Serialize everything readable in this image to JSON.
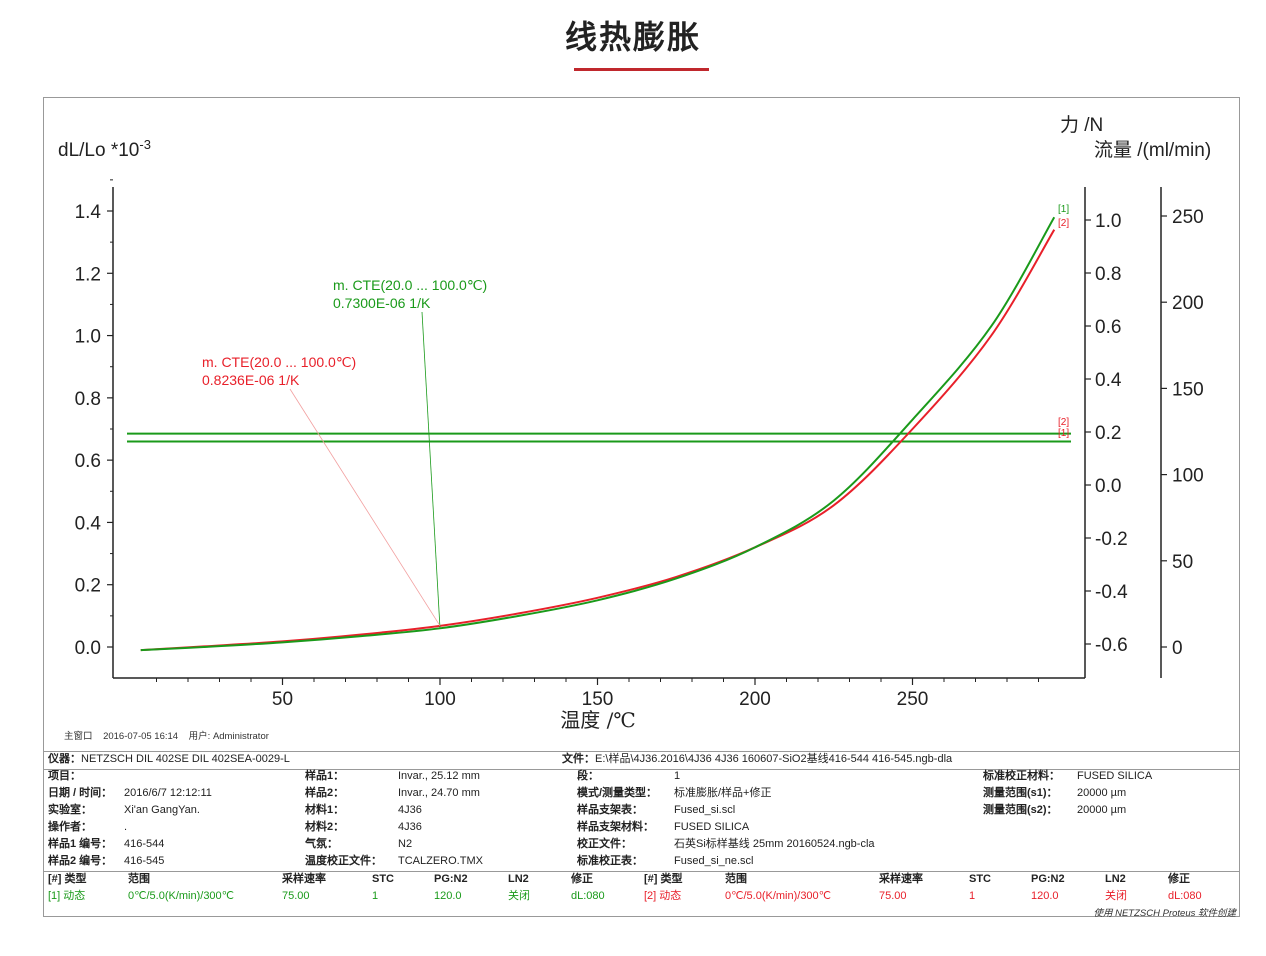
{
  "page": {
    "title": "线热膨胀"
  },
  "chart_data": {
    "type": "line",
    "title": "",
    "xlabel": "温度 /℃",
    "ylabel": "dL/Lo *10-3",
    "ylabel_base": "dL/Lo *10",
    "ylabel_exp": "-3",
    "y2label": "力 /N",
    "y3label": "流量 /(ml/min)",
    "xlim": [
      0,
      300
    ],
    "ylim": [
      -0.1,
      1.5
    ],
    "x_ticks": [
      50,
      100,
      150,
      200,
      250
    ],
    "y_ticks": [
      0.0,
      0.2,
      0.4,
      0.6,
      0.8,
      1.0,
      1.2,
      1.4
    ],
    "y_tick_labels": [
      "0.0",
      "0.2",
      "0.4",
      "0.6",
      "0.8",
      "1.0",
      "1.2",
      "1.4"
    ],
    "y2_ticks": [
      -0.6,
      -0.4,
      -0.2,
      0.0,
      0.2,
      0.4,
      0.6,
      0.8,
      1.0
    ],
    "y2_tick_labels": [
      "-0.6",
      "-0.4",
      "-0.2",
      "0.0",
      "0.2",
      "0.4",
      "0.6",
      "0.8",
      "1.0"
    ],
    "y3_ticks": [
      0,
      50,
      100,
      150,
      200,
      250
    ],
    "y3_tick_labels": [
      "0",
      "50",
      "100",
      "150",
      "200",
      "250"
    ],
    "series": [
      {
        "name": "[1]",
        "color": "#1a9a1a",
        "x": [
          5,
          25,
          50,
          75,
          100,
          125,
          150,
          175,
          200,
          225,
          250,
          275,
          295
        ],
        "y": [
          -0.01,
          0.0,
          0.015,
          0.035,
          0.06,
          0.1,
          0.15,
          0.22,
          0.32,
          0.47,
          0.73,
          1.03,
          1.38
        ]
      },
      {
        "name": "[2]",
        "color": "#e8202a",
        "x": [
          5,
          25,
          50,
          75,
          100,
          125,
          150,
          175,
          200,
          225,
          250,
          275,
          295
        ],
        "y": [
          -0.01,
          0.002,
          0.018,
          0.04,
          0.068,
          0.108,
          0.158,
          0.225,
          0.32,
          0.455,
          0.7,
          1.0,
          1.34
        ]
      }
    ],
    "force_lines": [
      {
        "name": "[1]",
        "color": "#1a9a1a",
        "y": 0.66
      },
      {
        "name": "[2]",
        "color": "#1a9a1a",
        "y": 0.685
      }
    ],
    "end_markers": [
      {
        "text": "[1]",
        "color": "#1a9a1a"
      },
      {
        "text": "[2]",
        "color": "#e8202a"
      },
      {
        "text": "[2]",
        "color": "#e8202a"
      },
      {
        "text": "[1]",
        "color": "#e8202a"
      }
    ],
    "annotations": [
      {
        "color": "#1a9a1a",
        "line1": "m. CTE(20.0 ... 100.0℃)",
        "line2": "0.7300E-06 1/K",
        "anchor_x": 100,
        "anchor_y": 0.06
      },
      {
        "color": "#e8202a",
        "line1": "m. CTE(20.0 ... 100.0℃)",
        "line2": "0.8236E-06 1/K",
        "anchor_x": 100,
        "anchor_y": 0.068
      }
    ]
  },
  "meta": {
    "main_window": "主窗口",
    "datetime": "2016-07-05 16:14",
    "user_label": "用户:",
    "user": "Administrator"
  },
  "info": {
    "instrument_label": "仪器：",
    "instrument": "NETZSCH DIL 402SE DIL 402SEA-0029-L",
    "file_label": "文件：",
    "file": "E:\\样品\\4J36.2016\\4J36 4J36 160607-SiO2基线416-544 416-545.ngb-dla",
    "rows": [
      [
        "项目：",
        "",
        "样品1：",
        "Invar., 25.12 mm",
        "段：",
        "1",
        "标准校正材料：",
        "FUSED SILICA"
      ],
      [
        "日期 / 时间：",
        "2016/6/7 12:12:11",
        "样品2：",
        "Invar., 24.70 mm",
        "模式/测量类型：",
        "标准膨胀/样品+修正",
        "测量范围(s1)：",
        "20000 µm"
      ],
      [
        "实验室：",
        "Xi'an GangYan.",
        "材料1：",
        "4J36",
        "样品支架表：",
        "Fused_si.scl",
        "测量范围(s2)：",
        "20000 µm"
      ],
      [
        "操作者：",
        ".",
        "材料2：",
        "4J36",
        "样品支架材料：",
        "FUSED SILICA",
        "",
        ""
      ],
      [
        "样品1 编号：",
        "416-544",
        "气氛：",
        "N2",
        "校正文件：",
        "石英Si标样基线 25mm 20160524.ngb-cla",
        "",
        ""
      ],
      [
        "样品2 编号：",
        "416-545",
        "温度校正文件：",
        "TCALZERO.TMX",
        "标准校正表：",
        "Fused_si_ne.scl",
        "",
        ""
      ]
    ],
    "seg_headers": [
      "[#] 类型",
      "范围",
      "采样速率",
      "STC",
      "PG:N2",
      "LN2",
      "修正"
    ],
    "seg1": [
      "[1] 动态",
      "0℃/5.0(K/min)/300℃",
      "75.00",
      "1",
      "120.0",
      "关闭",
      "dL:080"
    ],
    "seg2": [
      "[2] 动态",
      "0℃/5.0(K/min)/300℃",
      "75.00",
      "1",
      "120.0",
      "关闭",
      "dL:080"
    ],
    "footer": "使用 NETZSCH Proteus 软件创建"
  }
}
